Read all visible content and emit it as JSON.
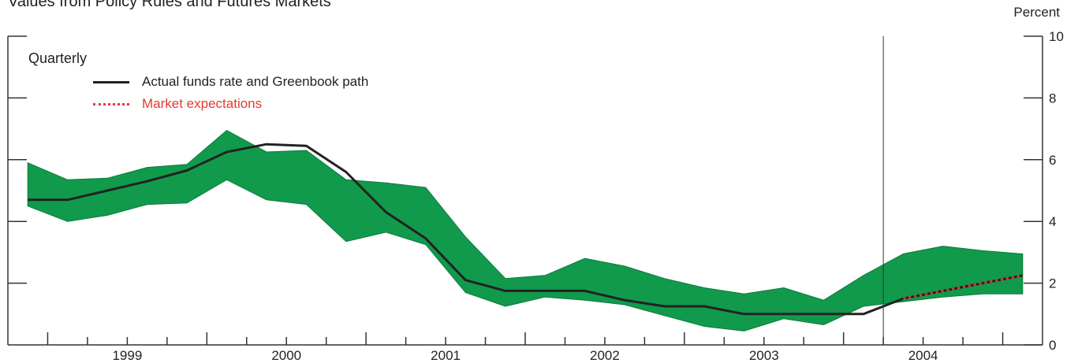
{
  "header": {
    "title": "Values from Policy Rules and Futures Markets",
    "unit": "Percent",
    "frequency": "Quarterly"
  },
  "legend": {
    "actual_label": "Actual funds rate and Greenbook path",
    "market_label": "Market expectations"
  },
  "colors": {
    "band": "#119a4c",
    "actual": "#222222",
    "market": "#e23b2e"
  },
  "chart_data": {
    "type": "area",
    "title": "",
    "ylabel": "Percent",
    "ylim": [
      0,
      10
    ],
    "yticks": [
      0,
      2,
      4,
      6,
      8,
      10
    ],
    "x_years": [
      "1999",
      "2000",
      "2001",
      "2002",
      "2003",
      "2004"
    ],
    "x_start": 1998.75,
    "x_end": 2005.25,
    "forecast_start": 2004.25,
    "series": [
      {
        "name": "Actual funds rate and Greenbook path",
        "x": [
          1998.875,
          1999.125,
          1999.375,
          1999.625,
          1999.875,
          2000.125,
          2000.375,
          2000.625,
          2000.875,
          2001.125,
          2001.375,
          2001.625,
          2001.875,
          2002.125,
          2002.375,
          2002.625,
          2002.875,
          2003.125,
          2003.375,
          2003.625,
          2003.875,
          2004.125,
          2004.375,
          2004.625,
          2004.875,
          2005.125
        ],
        "values": [
          4.7,
          4.7,
          5.0,
          5.3,
          5.65,
          6.25,
          6.5,
          6.45,
          5.6,
          4.3,
          3.45,
          2.1,
          1.75,
          1.75,
          1.75,
          1.45,
          1.25,
          1.25,
          1.0,
          1.0,
          1.0,
          1.0,
          1.5,
          1.75,
          2.0,
          2.25
        ]
      },
      {
        "name": "Market expectations",
        "x": [
          2004.375,
          2004.625,
          2004.875,
          2005.125
        ],
        "values": [
          1.5,
          1.75,
          2.0,
          2.25
        ]
      }
    ],
    "band": {
      "x": [
        1998.875,
        1999.125,
        1999.375,
        1999.625,
        1999.875,
        2000.125,
        2000.375,
        2000.625,
        2000.875,
        2001.125,
        2001.375,
        2001.625,
        2001.875,
        2002.125,
        2002.375,
        2002.625,
        2002.875,
        2003.125,
        2003.375,
        2003.625,
        2003.875,
        2004.125,
        2004.375,
        2004.625,
        2004.875,
        2005.125
      ],
      "upper": [
        5.9,
        5.35,
        5.4,
        5.75,
        5.85,
        6.95,
        6.25,
        6.3,
        5.35,
        5.25,
        5.1,
        3.5,
        2.15,
        2.25,
        2.8,
        2.55,
        2.15,
        1.85,
        1.65,
        1.85,
        1.45,
        2.25,
        2.95,
        3.2,
        3.05,
        2.95
      ],
      "lower": [
        4.5,
        4.0,
        4.2,
        4.55,
        4.6,
        5.35,
        4.7,
        4.55,
        3.35,
        3.65,
        3.25,
        1.7,
        1.25,
        1.55,
        1.45,
        1.3,
        0.95,
        0.6,
        0.45,
        0.85,
        0.65,
        1.25,
        1.4,
        1.55,
        1.65,
        1.65
      ]
    }
  }
}
